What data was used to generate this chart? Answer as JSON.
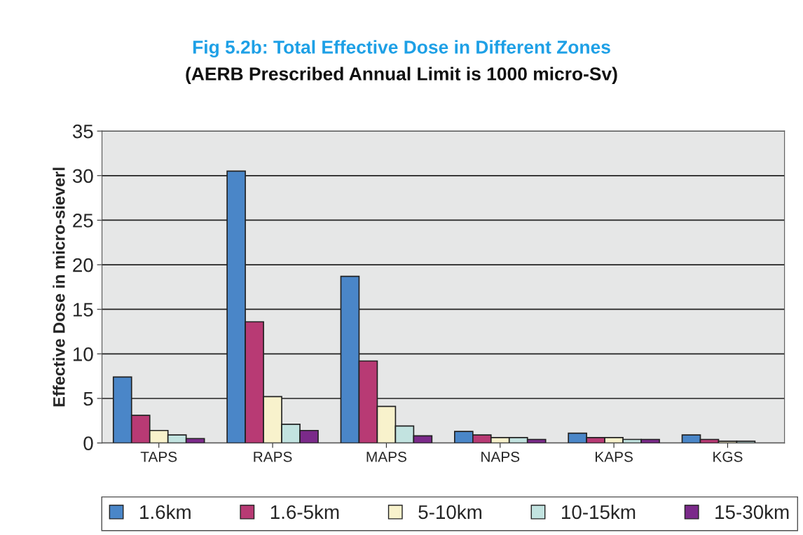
{
  "chart_data": {
    "type": "bar",
    "title": "Fig 5.2b: Total Effective Dose in Different Zones",
    "subtitle": "(AERB Prescribed Annual Limit is 1000 micro-Sv)",
    "ylabel": "Effective Dose in micro-sieverl",
    "categories": [
      "TAPS",
      "RAPS",
      "MAPS",
      "NAPS",
      "KAPS",
      "KGS"
    ],
    "series": [
      {
        "name": "1.6km",
        "color": "#4a86c8",
        "values": [
          7.4,
          30.5,
          18.7,
          1.3,
          1.1,
          0.9
        ]
      },
      {
        "name": "1.6-5km",
        "color": "#b83a74",
        "values": [
          3.1,
          13.6,
          9.2,
          0.9,
          0.6,
          0.4
        ]
      },
      {
        "name": "5-10km",
        "color": "#f8f2cc",
        "values": [
          1.4,
          5.2,
          4.1,
          0.6,
          0.6,
          0.2
        ]
      },
      {
        "name": "10-15km",
        "color": "#c2e3e0",
        "values": [
          0.9,
          2.1,
          1.9,
          0.6,
          0.4,
          0.2
        ]
      },
      {
        "name": "15-30km",
        "color": "#7b2a8a",
        "values": [
          0.5,
          1.4,
          0.8,
          0.4,
          0.4,
          null
        ]
      }
    ],
    "ylim": [
      0,
      35
    ],
    "yticks": [
      0,
      5,
      10,
      15,
      20,
      25,
      30,
      35
    ],
    "grid": "y",
    "legend": "bottom"
  }
}
